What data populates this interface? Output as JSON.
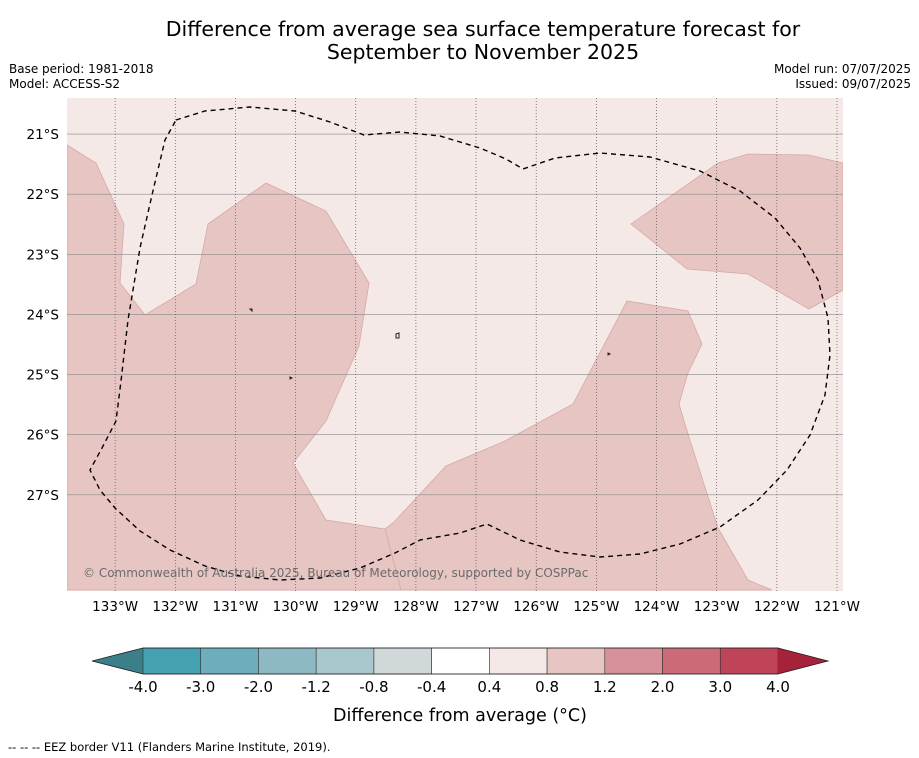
{
  "header": {
    "title": "Difference from average sea surface temperature forecast for\nSeptember to November 2025",
    "base_period": "Base period: 1981-2018",
    "model": "Model: ACCESS-S2",
    "model_run": "Model run: 07/07/2025",
    "issued": "Issued: 09/07/2025"
  },
  "map": {
    "copyright": "© Commonwealth of Australia 2025, Bureau of Meteorology, supported by COSPPac",
    "lat_labels": [
      "21°S",
      "22°S",
      "23°S",
      "24°S",
      "25°S",
      "26°S",
      "27°S"
    ],
    "lat_values": [
      -21,
      -22,
      -23,
      -24,
      -25,
      -26,
      -27
    ],
    "lon_labels": [
      "133°W",
      "132°W",
      "131°W",
      "130°W",
      "129°W",
      "128°W",
      "127°W",
      "126°W",
      "125°W",
      "124°W",
      "123°W",
      "122°W",
      "121°W"
    ],
    "lon_values": [
      -133,
      -132,
      -131,
      -130,
      -129,
      -128,
      -127,
      -126,
      -125,
      -124,
      -123,
      -122,
      -121
    ],
    "lon_range": [
      -133.8,
      -120.9
    ],
    "lat_range": [
      -28.6,
      -20.4
    ],
    "background_color": "#f5e9e8",
    "warm_color": "#e7c5c2",
    "contour_color": "#d6a9a5",
    "eez_color": "#000000"
  },
  "colorbar": {
    "title": "Difference from average (°C)",
    "tick_labels": [
      "-4.0",
      "-3.0",
      "-2.0",
      "-1.2",
      "-0.8",
      "-0.4",
      "0.4",
      "0.8",
      "1.2",
      "2.0",
      "3.0",
      "4.0"
    ],
    "colors": [
      "#45a0b1",
      "#6eadbb",
      "#8db9c4",
      "#a9c8cd",
      "#d0d8da",
      "#ffffff",
      "#f5e9e8",
      "#e7c5c2",
      "#d8919a",
      "#cc6b77",
      "#bf4457"
    ],
    "under_color": "#3b7f89",
    "over_color": "#a6213a"
  },
  "footer": {
    "legend": "--  --  -- EEZ border V11 (Flanders Marine Institute, 2019)."
  }
}
